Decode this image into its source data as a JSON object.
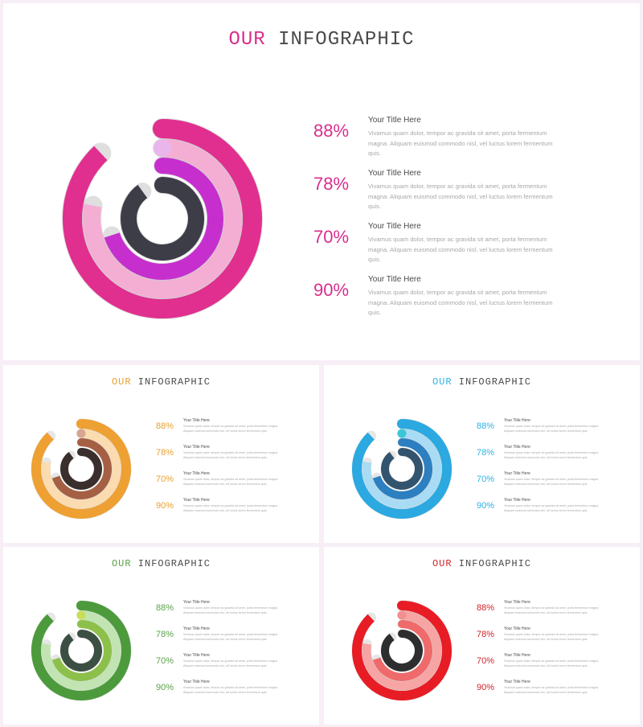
{
  "slides": [
    {
      "id": "main",
      "title_word1": "OUR",
      "title_word2": "INFOGRAPHIC",
      "colors": {
        "accent": "#d92e8e",
        "ring1": "#e02f8f",
        "ring2": "#f4aed4",
        "ring3": "#c62fcd",
        "ring4": "#3d3d47",
        "dot": "#e9b6ec",
        "gap": "#b9b9b9"
      }
    },
    {
      "id": "orange",
      "title_word1": "OUR",
      "title_word2": "INFOGRAPHIC",
      "colors": {
        "accent": "#e8a030",
        "ring1": "#eea033",
        "ring2": "#fbdcb0",
        "ring3": "#a56044",
        "ring4": "#3a2f2c",
        "dot": "#d8a590",
        "gap": "#c8c8c8"
      }
    },
    {
      "id": "blue",
      "title_word1": "OUR",
      "title_word2": "INFOGRAPHIC",
      "colors": {
        "accent": "#2fb0e0",
        "ring1": "#2ba9e0",
        "ring2": "#a9dcf4",
        "ring3": "#2c7fc0",
        "ring4": "#33546f",
        "dot": "#3cc7d9",
        "gap": "#c8c8c8"
      }
    },
    {
      "id": "green",
      "title_word1": "OUR",
      "title_word2": "INFOGRAPHIC",
      "colors": {
        "accent": "#5aa248",
        "ring1": "#4c9a3c",
        "ring2": "#c2e4b2",
        "ring3": "#8cc04a",
        "ring4": "#3b4f42",
        "dot": "#c8de5a",
        "gap": "#c8c8c8"
      }
    },
    {
      "id": "red",
      "title_word1": "OUR",
      "title_word2": "INFOGRAPHIC",
      "colors": {
        "accent": "#d0242a",
        "ring1": "#e81c24",
        "ring2": "#f6a4a4",
        "ring3": "#ef6a6a",
        "ring4": "#2e2e2e",
        "dot": "#f29090",
        "gap": "#c8c8c8"
      }
    }
  ],
  "items": [
    {
      "percent": "88%",
      "value": 0.88,
      "title": "Your Title Here",
      "body": "Vivamus quam dolor, tempor ac gravida sit amet, porta fermentum magna. Aliquam euismod commodo nisl, vel luctus lorem fermentum quis."
    },
    {
      "percent": "78%",
      "value": 0.78,
      "title": "Your Title Here",
      "body": "Vivamus quam dolor, tempor ac gravida sit amet, porta fermentum magna. Aliquam euismod commodo nisl, vel luctus lorem fermentum quis."
    },
    {
      "percent": "70%",
      "value": 0.7,
      "title": "Your Title Here",
      "body": "Vivamus quam dolor, tempor ac gravida sit amet, porta fermentum magna. Aliquam euismod commodo nisl, vel luctus lorem fermentum quis."
    },
    {
      "percent": "90%",
      "value": 0.9,
      "title": "Your Title Here",
      "body": "Vivamus quam dolor, tempor ac gravida sit amet, porta fermentum magna. Aliquam euismod commodo nisl, vel luctus lorem fermentum quis."
    }
  ]
}
